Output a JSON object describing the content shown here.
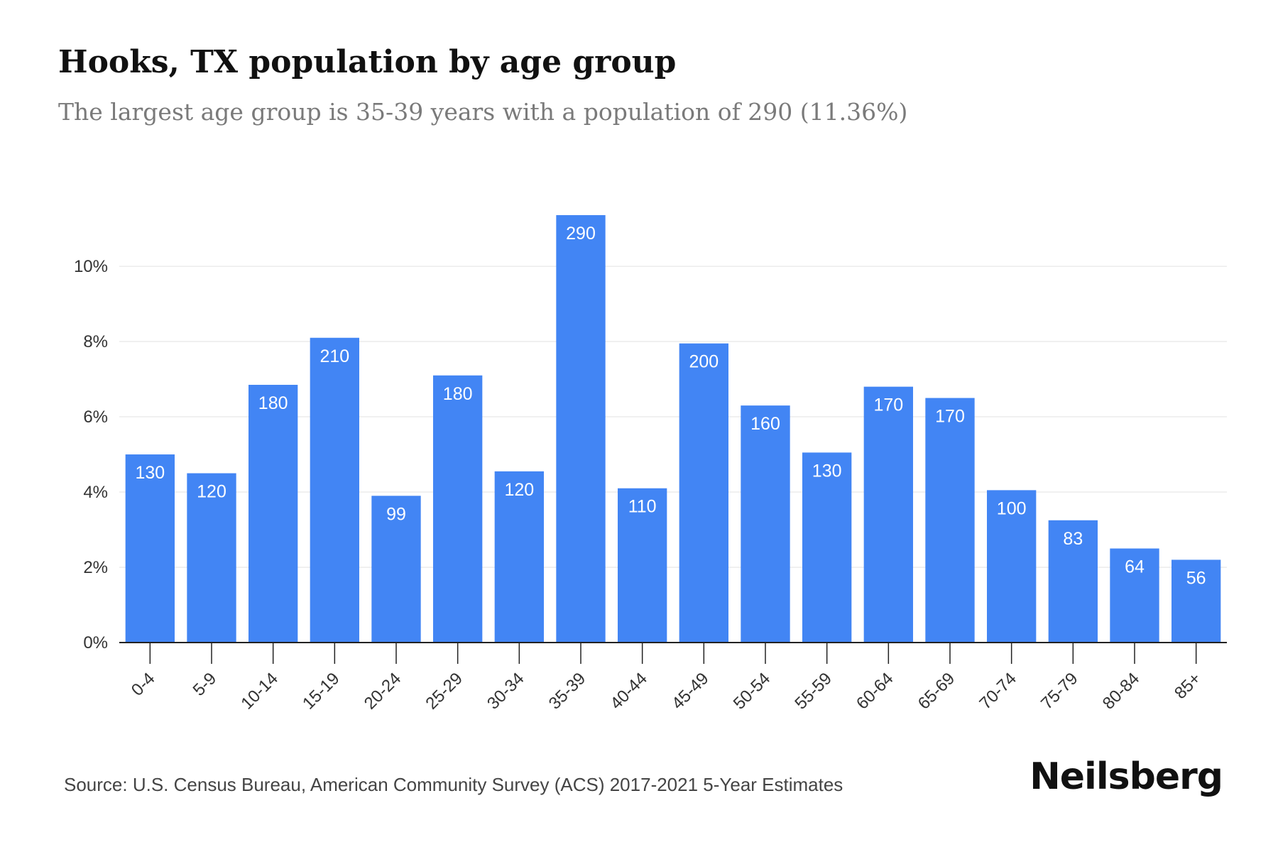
{
  "header": {
    "title": "Hooks, TX population by age group",
    "subtitle": "The largest age group is 35-39 years with a population of 290 (11.36%)"
  },
  "footer": {
    "source": "Source: U.S. Census Bureau, American Community Survey (ACS) 2017-2021 5-Year Estimates",
    "brand": "Neilsberg"
  },
  "colors": {
    "bar": "#4285f4",
    "bar_label": "#ffffff",
    "grid": "#ececec",
    "axis": "#222222",
    "tick_text": "#333333"
  },
  "chart_data": {
    "type": "bar",
    "categories": [
      "0-4",
      "5-9",
      "10-14",
      "15-19",
      "20-24",
      "25-29",
      "30-34",
      "35-39",
      "40-44",
      "45-49",
      "50-54",
      "55-59",
      "60-64",
      "65-69",
      "70-74",
      "75-79",
      "80-84",
      "85+"
    ],
    "values": [
      5.0,
      4.5,
      6.85,
      8.1,
      3.9,
      7.1,
      4.55,
      11.36,
      4.1,
      7.95,
      6.3,
      5.05,
      6.8,
      6.5,
      4.05,
      3.25,
      2.5,
      2.2
    ],
    "labels": [
      "130",
      "120",
      "180",
      "210",
      "99",
      "180",
      "120",
      "290",
      "110",
      "200",
      "160",
      "130",
      "170",
      "170",
      "100",
      "83",
      "64",
      "56"
    ],
    "ylim": [
      0,
      11.36
    ],
    "yticks": [
      0,
      2,
      4,
      6,
      8,
      10
    ],
    "ytick_labels": [
      "0%",
      "2%",
      "4%",
      "6%",
      "8%",
      "10%"
    ],
    "grid": true,
    "legend": "none"
  }
}
